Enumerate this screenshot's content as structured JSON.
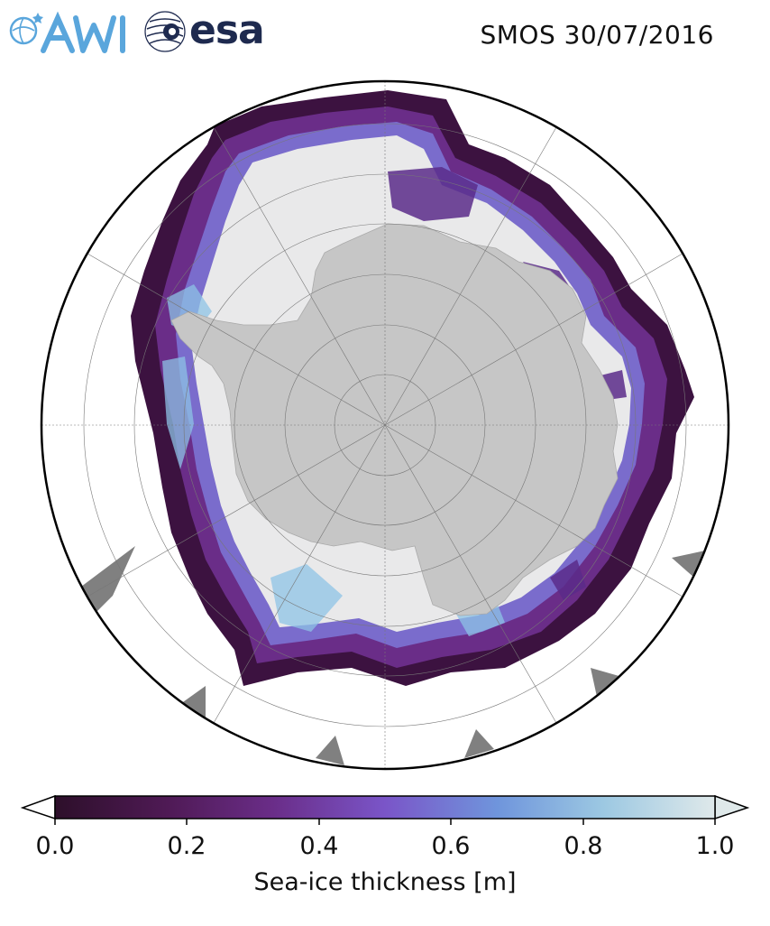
{
  "header": {
    "logo_awi": "AWI",
    "logo_esa": "esa",
    "title": "SMOS 30/07/2016"
  },
  "map": {
    "projection": "south-polar-stereographic",
    "land_color": "#c6c6c6",
    "ocean_color": "#ffffff",
    "missing_color": "#808080"
  },
  "colorbar": {
    "label": "Sea-ice thickness [m]",
    "min": 0.0,
    "max": 1.0,
    "ticks": [
      "0.0",
      "0.2",
      "0.4",
      "0.6",
      "0.8",
      "1.0"
    ],
    "colors": [
      "#2d0f2a",
      "#4f1a55",
      "#6a2d88",
      "#7a55c8",
      "#6f95dc",
      "#9cc8e2",
      "#dfe9ea"
    ],
    "extend": "both"
  }
}
